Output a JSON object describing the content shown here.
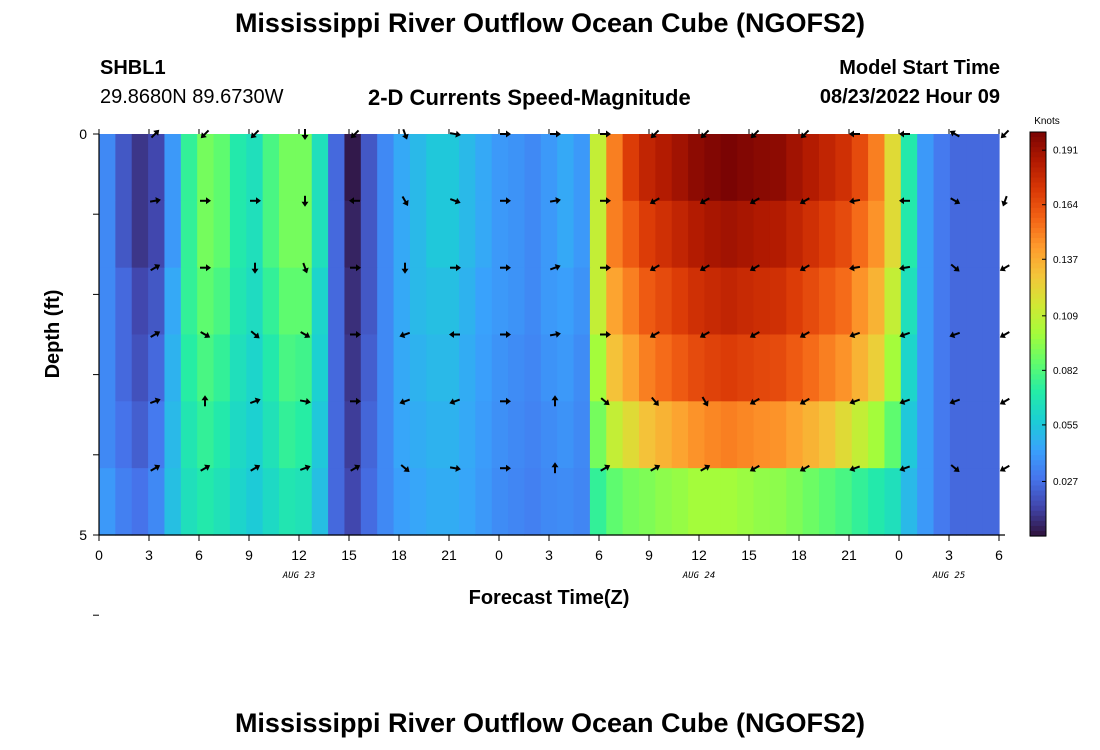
{
  "header": {
    "title": "Mississippi River Outflow Ocean Cube (NGOFS2)",
    "station": "SHBL1",
    "coordinates": "29.8680N  89.6730W",
    "subtitle": "2-D Currents Speed-Magnitude",
    "model_start_label": "Model Start Time",
    "model_start_value": "08/23/2022 Hour 09"
  },
  "footer": {
    "title": "Mississippi River Outflow Ocean Cube (NGOFS2)"
  },
  "colors": {
    "ramp": [
      "#30123b",
      "#4145ab",
      "#4675ed",
      "#39a2fc",
      "#1bcfd4",
      "#24eca6",
      "#61fc6c",
      "#a4fc3b",
      "#d1e834",
      "#f3c63a",
      "#fe9b2d",
      "#f36315",
      "#d93806",
      "#b11901",
      "#7a0403"
    ]
  },
  "chart_data": {
    "type": "heatmap",
    "xlabel": "Forecast Time(Z)",
    "ylabel": "Depth (ft)",
    "x_tick_labels": [
      "0",
      "3",
      "6",
      "9",
      "12",
      "15",
      "18",
      "21",
      "0",
      "3",
      "6",
      "9",
      "12",
      "15",
      "18",
      "21",
      "0",
      "3",
      "6"
    ],
    "x_range_hours": [
      0,
      54
    ],
    "date_labels": [
      {
        "hour": 12,
        "label": "AUG 23"
      },
      {
        "hour": 36,
        "label": "AUG 24"
      },
      {
        "hour": 51,
        "label": "AUG 25"
      }
    ],
    "y_tick_labels": [
      {
        "depth_index": 0,
        "label": "0"
      },
      {
        "depth_index": 5,
        "label": "5"
      }
    ],
    "depth_levels": 5,
    "colorbar": {
      "unit": "Knots",
      "min": 0.0,
      "max": 0.2,
      "ticks": [
        "0.191",
        "0.164",
        "0.137",
        "0.109",
        "0.082",
        "0.055",
        "0.027"
      ],
      "tick_values": [
        0.191,
        0.164,
        0.137,
        0.109,
        0.082,
        0.055,
        0.027
      ]
    },
    "columns_hours": [
      0,
      1,
      2,
      3,
      4,
      5,
      6,
      7,
      8,
      9,
      10,
      11,
      12,
      13,
      14,
      15,
      16,
      17,
      18,
      19,
      20,
      21,
      22,
      23,
      24,
      25,
      26,
      27,
      28,
      29,
      30,
      31,
      32,
      33,
      34,
      35,
      36,
      37,
      38,
      39,
      40,
      41,
      42,
      43,
      44,
      45,
      46,
      47,
      48,
      49,
      50,
      51,
      52,
      53,
      54
    ],
    "speed_knots_by_row": [
      [
        0.035,
        0.02,
        0.01,
        0.015,
        0.04,
        0.075,
        0.09,
        0.085,
        0.07,
        0.065,
        0.08,
        0.09,
        0.09,
        0.065,
        0.025,
        0.002,
        0.02,
        0.035,
        0.045,
        0.05,
        0.055,
        0.055,
        0.05,
        0.045,
        0.04,
        0.038,
        0.035,
        0.04,
        0.045,
        0.04,
        0.11,
        0.15,
        0.17,
        0.18,
        0.185,
        0.19,
        0.195,
        0.198,
        0.2,
        0.198,
        0.196,
        0.195,
        0.19,
        0.185,
        0.18,
        0.175,
        0.165,
        0.15,
        0.12,
        0.07,
        0.04,
        0.03,
        0.025,
        0.025,
        0.025
      ],
      [
        0.035,
        0.02,
        0.01,
        0.015,
        0.04,
        0.075,
        0.09,
        0.085,
        0.07,
        0.065,
        0.08,
        0.09,
        0.09,
        0.065,
        0.025,
        0.005,
        0.02,
        0.035,
        0.045,
        0.05,
        0.055,
        0.055,
        0.05,
        0.045,
        0.04,
        0.038,
        0.035,
        0.04,
        0.045,
        0.04,
        0.11,
        0.15,
        0.16,
        0.17,
        0.175,
        0.18,
        0.185,
        0.188,
        0.19,
        0.188,
        0.186,
        0.185,
        0.18,
        0.175,
        0.17,
        0.165,
        0.155,
        0.145,
        0.12,
        0.07,
        0.04,
        0.03,
        0.025,
        0.025,
        0.025
      ],
      [
        0.035,
        0.025,
        0.015,
        0.02,
        0.045,
        0.075,
        0.085,
        0.08,
        0.068,
        0.063,
        0.075,
        0.085,
        0.085,
        0.06,
        0.025,
        0.008,
        0.02,
        0.035,
        0.045,
        0.05,
        0.052,
        0.052,
        0.048,
        0.043,
        0.04,
        0.038,
        0.035,
        0.04,
        0.042,
        0.038,
        0.11,
        0.14,
        0.15,
        0.16,
        0.165,
        0.17,
        0.175,
        0.178,
        0.18,
        0.178,
        0.176,
        0.175,
        0.17,
        0.165,
        0.16,
        0.155,
        0.145,
        0.135,
        0.11,
        0.065,
        0.04,
        0.03,
        0.025,
        0.025,
        0.025
      ],
      [
        0.035,
        0.025,
        0.018,
        0.025,
        0.048,
        0.072,
        0.08,
        0.075,
        0.065,
        0.06,
        0.07,
        0.08,
        0.078,
        0.058,
        0.025,
        0.01,
        0.022,
        0.035,
        0.045,
        0.048,
        0.05,
        0.05,
        0.046,
        0.042,
        0.038,
        0.036,
        0.034,
        0.038,
        0.04,
        0.036,
        0.1,
        0.13,
        0.14,
        0.15,
        0.155,
        0.16,
        0.165,
        0.168,
        0.17,
        0.168,
        0.166,
        0.165,
        0.16,
        0.155,
        0.15,
        0.145,
        0.135,
        0.125,
        0.1,
        0.06,
        0.04,
        0.03,
        0.025,
        0.025,
        0.025
      ],
      [
        0.035,
        0.028,
        0.022,
        0.03,
        0.05,
        0.068,
        0.075,
        0.07,
        0.062,
        0.058,
        0.066,
        0.075,
        0.072,
        0.055,
        0.025,
        0.012,
        0.024,
        0.035,
        0.044,
        0.046,
        0.048,
        0.048,
        0.045,
        0.041,
        0.037,
        0.035,
        0.033,
        0.036,
        0.038,
        0.035,
        0.09,
        0.11,
        0.12,
        0.13,
        0.135,
        0.14,
        0.145,
        0.148,
        0.15,
        0.148,
        0.146,
        0.145,
        0.14,
        0.135,
        0.13,
        0.12,
        0.11,
        0.1,
        0.085,
        0.055,
        0.04,
        0.03,
        0.025,
        0.025,
        0.025
      ],
      [
        0.04,
        0.032,
        0.028,
        0.035,
        0.052,
        0.065,
        0.07,
        0.066,
        0.06,
        0.056,
        0.062,
        0.068,
        0.066,
        0.052,
        0.025,
        0.015,
        0.026,
        0.035,
        0.042,
        0.044,
        0.046,
        0.046,
        0.044,
        0.04,
        0.036,
        0.034,
        0.032,
        0.035,
        0.036,
        0.034,
        0.075,
        0.085,
        0.09,
        0.092,
        0.095,
        0.097,
        0.1,
        0.1,
        0.1,
        0.098,
        0.096,
        0.095,
        0.092,
        0.088,
        0.084,
        0.08,
        0.075,
        0.07,
        0.065,
        0.05,
        0.04,
        0.03,
        0.025,
        0.025,
        0.025
      ]
    ],
    "vector_columns_hours": [
      3,
      6,
      9,
      12,
      15,
      18,
      21,
      24,
      27,
      30,
      33,
      36,
      39,
      42,
      45,
      48,
      51,
      54
    ],
    "vector_directions_deg_by_row": [
      [
        45,
        225,
        225,
        180,
        225,
        160,
        100,
        90,
        90,
        90,
        225,
        225,
        225,
        225,
        270,
        270,
        300,
        225
      ],
      [
        80,
        90,
        90,
        180,
        270,
        150,
        110,
        90,
        80,
        90,
        240,
        240,
        240,
        240,
        260,
        270,
        120,
        200
      ],
      [
        60,
        90,
        180,
        160,
        90,
        180,
        90,
        90,
        70,
        90,
        240,
        240,
        240,
        240,
        260,
        260,
        130,
        240
      ],
      [
        60,
        120,
        130,
        120,
        90,
        250,
        270,
        90,
        80,
        90,
        240,
        240,
        240,
        240,
        250,
        250,
        250,
        240
      ],
      [
        70,
        0,
        70,
        100,
        90,
        250,
        250,
        90,
        0,
        130,
        140,
        150,
        240,
        240,
        250,
        250,
        250,
        240
      ],
      [
        60,
        60,
        60,
        70,
        60,
        130,
        100,
        90,
        0,
        60,
        60,
        60,
        240,
        240,
        250,
        250,
        130,
        240
      ]
    ]
  }
}
